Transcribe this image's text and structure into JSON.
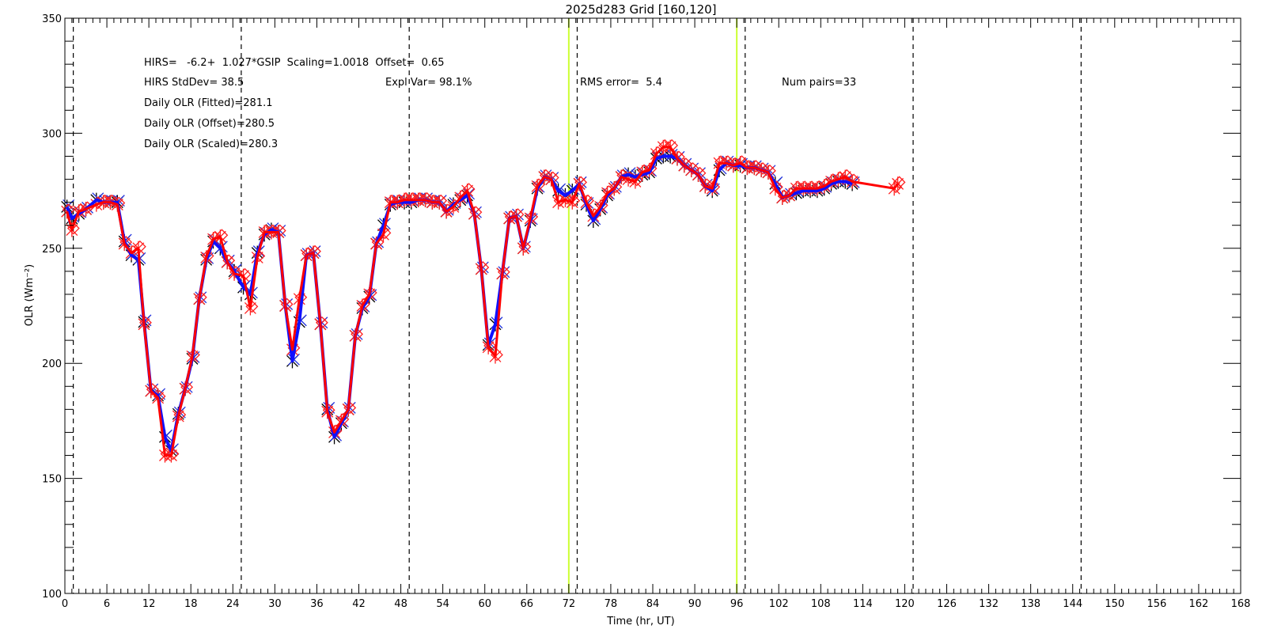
{
  "chart_data": {
    "type": "line",
    "title": "2025d283 Grid [160,120]",
    "xlabel": "Time (hr, UT)",
    "ylabel": "OLR (Wm⁻²)",
    "xlim": [
      0,
      168
    ],
    "ylim": [
      100,
      350
    ],
    "xticks": [
      "0",
      "6",
      "12",
      "18",
      "24",
      "30",
      "36",
      "42",
      "48",
      "54",
      "60",
      "66",
      "72",
      "78",
      "84",
      "90",
      "96",
      "102",
      "108",
      "114",
      "120",
      "126",
      "132",
      "138",
      "144",
      "150",
      "156",
      "162",
      "168"
    ],
    "yticks": [
      "100",
      "150",
      "200",
      "250",
      "300",
      "350"
    ],
    "dashed_vlines": [
      1.2,
      25.2,
      49.2,
      73.2,
      97.2,
      121.2,
      145.2
    ],
    "yellow_vlines": [
      72,
      96
    ],
    "annotations": {
      "fit": "HIRS=   -6.2+  1.027*GSIP  Scaling=1.0018  Offset=  0.65",
      "stddev": "HIRS StdDev= 38.5",
      "explvar": "Expl Var= 98.1%",
      "rms": "RMS error=  5.4",
      "pairs": "Num pairs=33",
      "fitted": "Daily OLR (Fitted)=281.1",
      "offset": "Daily OLR (Offset)=280.5",
      "scaled": "Daily OLR (Scaled)=280.3"
    },
    "series": [
      {
        "style": "black asterisks, blue line",
        "x": [
          0.3,
          1.0,
          2.0,
          3.0,
          4.5,
          5.5,
          6.5,
          7.5,
          8.5,
          9.5,
          10.5,
          11.3,
          12.3,
          13.3,
          14.3,
          15.2,
          16.2,
          17.2,
          18.2,
          19.2,
          20.2,
          21.2,
          22.2,
          23.2,
          24.2,
          25.5,
          26.5,
          27.5,
          28.5,
          29.5,
          30.5,
          31.5,
          32.5,
          33.5,
          34.5,
          35.5,
          36.5,
          37.5,
          38.5,
          39.5,
          40.5,
          41.5,
          42.5,
          43.5,
          44.5,
          45.5,
          46.5,
          47.5,
          48.5,
          49.5,
          50.5,
          51.5,
          52.5,
          53.5,
          54.5,
          55.5,
          56.5,
          57.5,
          58.5,
          59.5,
          60.5,
          61.5,
          62.5,
          63.5,
          64.5,
          65.5,
          66.5,
          67.5,
          68.5,
          69.5,
          70.5,
          71.5,
          72.5,
          73.5,
          74.5,
          75.5,
          76.5,
          77.5,
          78.5,
          79.5,
          80.5,
          81.5,
          82.5,
          83.5,
          84.5,
          85.5,
          86.5,
          87.5,
          88.5,
          89.5,
          90.5,
          91.5,
          92.5,
          93.5,
          94.5,
          95.5,
          96.5,
          97.5,
          98.5,
          99.5,
          100.5,
          101.5,
          102.5,
          103.5,
          104.5,
          105.5,
          106.5,
          107.5,
          108.5,
          109.5,
          110.5,
          111.5,
          112.5
        ],
        "y": [
          268,
          263,
          265,
          267,
          271,
          270,
          270,
          270,
          253,
          247,
          245,
          218,
          188,
          186,
          168,
          162,
          178,
          189,
          202,
          228,
          245,
          253,
          250,
          244,
          240,
          233,
          230,
          248,
          256,
          258,
          257,
          225,
          201,
          218,
          247,
          248,
          217,
          180,
          168,
          174,
          180,
          212,
          224,
          229,
          252,
          260,
          269,
          270,
          270,
          270,
          271,
          271,
          270,
          270,
          266,
          269,
          271,
          273,
          265,
          241,
          208,
          217,
          239,
          263,
          264,
          250,
          262,
          276,
          281,
          280,
          275,
          273,
          275,
          278,
          269,
          262,
          267,
          273,
          276,
          281,
          282,
          281,
          282,
          283,
          289,
          290,
          290,
          289,
          286,
          284,
          282,
          277,
          275,
          284,
          287,
          286,
          286,
          285,
          285,
          284,
          283,
          278,
          272,
          273,
          274,
          275,
          275,
          275,
          276,
          278,
          279,
          279,
          278
        ]
      },
      {
        "style": "red asterisks and diamonds, red line",
        "x": [
          0.3,
          1.0,
          2.0,
          3.0,
          4.5,
          5.5,
          6.5,
          7.5,
          8.5,
          9.5,
          10.5,
          11.3,
          12.3,
          13.3,
          14.3,
          15.2,
          16.2,
          17.2,
          18.2,
          19.2,
          20.2,
          21.2,
          22.2,
          23.2,
          24.2,
          25.5,
          26.5,
          27.5,
          28.5,
          29.5,
          30.5,
          31.5,
          32.5,
          33.5,
          34.5,
          35.5,
          36.5,
          37.5,
          38.5,
          39.5,
          40.5,
          41.5,
          42.5,
          43.5,
          44.5,
          45.5,
          46.5,
          47.5,
          48.5,
          49.5,
          50.5,
          51.5,
          52.5,
          53.5,
          54.5,
          55.5,
          56.5,
          57.5,
          58.5,
          59.5,
          60.5,
          61.5,
          62.5,
          63.5,
          64.5,
          65.5,
          66.5,
          67.5,
          68.5,
          69.5,
          70.5,
          71.5,
          72.5,
          73.5,
          74.5,
          75.5,
          76.5,
          77.5,
          78.5,
          79.5,
          80.5,
          81.5,
          82.5,
          83.5,
          84.5,
          85.5,
          86.5,
          87.5,
          88.5,
          89.5,
          90.5,
          91.5,
          92.5,
          93.5,
          94.5,
          95.5,
          96.5,
          97.5,
          98.5,
          99.5,
          100.5,
          101.5,
          102.5,
          103.5,
          104.5,
          105.5,
          106.5,
          107.5,
          108.5,
          109.5,
          110.5,
          111.5,
          112.5,
          118.5,
          119.0
        ],
        "y": [
          266,
          258,
          266,
          267,
          269,
          270,
          270,
          269,
          252,
          248,
          250,
          217,
          188,
          185,
          160,
          160,
          177,
          189,
          203,
          228,
          246,
          254,
          255,
          244,
          239,
          238,
          224,
          246,
          257,
          257,
          257,
          225,
          206,
          228,
          247,
          248,
          217,
          179,
          170,
          175,
          180,
          212,
          225,
          230,
          252,
          256,
          270,
          270,
          271,
          271,
          271,
          271,
          270,
          270,
          266,
          268,
          272,
          275,
          265,
          241,
          207,
          203,
          239,
          263,
          264,
          250,
          263,
          277,
          281,
          280,
          270,
          271,
          270,
          278,
          270,
          264,
          268,
          274,
          276,
          281,
          280,
          279,
          283,
          284,
          291,
          294,
          294,
          289,
          286,
          284,
          282,
          277,
          276,
          287,
          287,
          286,
          287,
          285,
          285,
          284,
          283,
          276,
          272,
          273,
          276,
          276,
          276,
          276,
          277,
          279,
          280,
          281,
          279,
          276,
          278
        ]
      }
    ]
  }
}
